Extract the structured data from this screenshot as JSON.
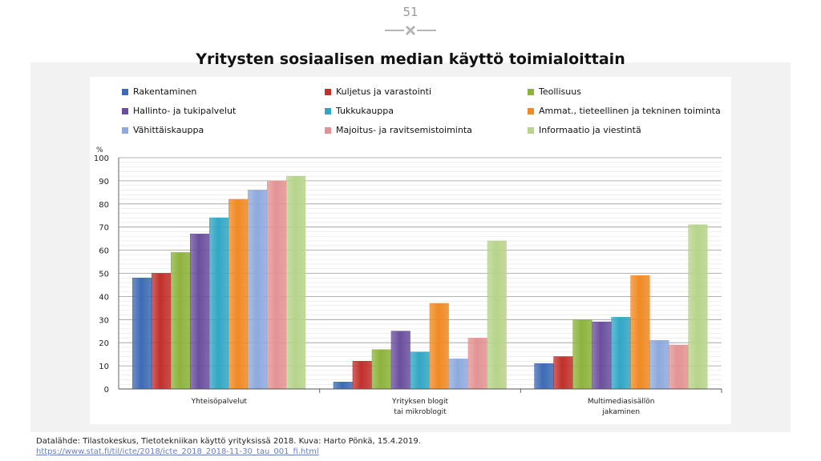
{
  "slide": {
    "page_number": "51",
    "title": "Yritysten sosiaalisen median käyttö toimialoittain",
    "source": "Datalähde: Tilastokeskus, Tietotekniikan käyttö yrityksissä 2018. Kuva: Harto Pönkä, 15.4.2019.",
    "url": "https://www.stat.fi/til/icte/2018/icte_2018_2018-11-30_tau_001_fi.html"
  },
  "chart_data": {
    "type": "bar",
    "title": "Yritysten sosiaalisen median käyttö toimialoittain",
    "ylabel": "%",
    "ylim": [
      0,
      100
    ],
    "yticks": [
      0,
      10,
      20,
      30,
      40,
      50,
      60,
      70,
      80,
      90,
      100
    ],
    "grid": true,
    "legend_position": "top",
    "categories": [
      [
        "Yhteisöpalvelut"
      ],
      [
        "Yrityksen blogit",
        "tai mikroblogit"
      ],
      [
        "Multimediasisällön",
        "jakaminen"
      ]
    ],
    "series": [
      {
        "name": "Rakentaminen",
        "color": "#3e6bb5",
        "values": [
          48,
          3,
          11
        ]
      },
      {
        "name": "Kuljetus ja varastointi",
        "color": "#c2302b",
        "values": [
          50,
          12,
          14
        ]
      },
      {
        "name": "Teollisuus",
        "color": "#8db33c",
        "values": [
          59,
          17,
          30
        ]
      },
      {
        "name": "Hallinto- ja tukipalvelut",
        "color": "#6b4f9e",
        "values": [
          67,
          25,
          29
        ]
      },
      {
        "name": "Tukkukauppa",
        "color": "#32a7c4",
        "values": [
          74,
          16,
          31
        ]
      },
      {
        "name": "Ammat., tieteellinen ja tekninen toiminta",
        "color": "#f08a24",
        "values": [
          82,
          37,
          49
        ]
      },
      {
        "name": "Vähittäiskauppa",
        "color": "#8eaadd",
        "values": [
          86,
          13,
          21
        ]
      },
      {
        "name": "Majoitus- ja ravitsemistoiminta",
        "color": "#e39393",
        "values": [
          90,
          22,
          19
        ]
      },
      {
        "name": "Informaatio ja viestintä",
        "color": "#b7d48a",
        "values": [
          92,
          64,
          71
        ]
      }
    ]
  }
}
